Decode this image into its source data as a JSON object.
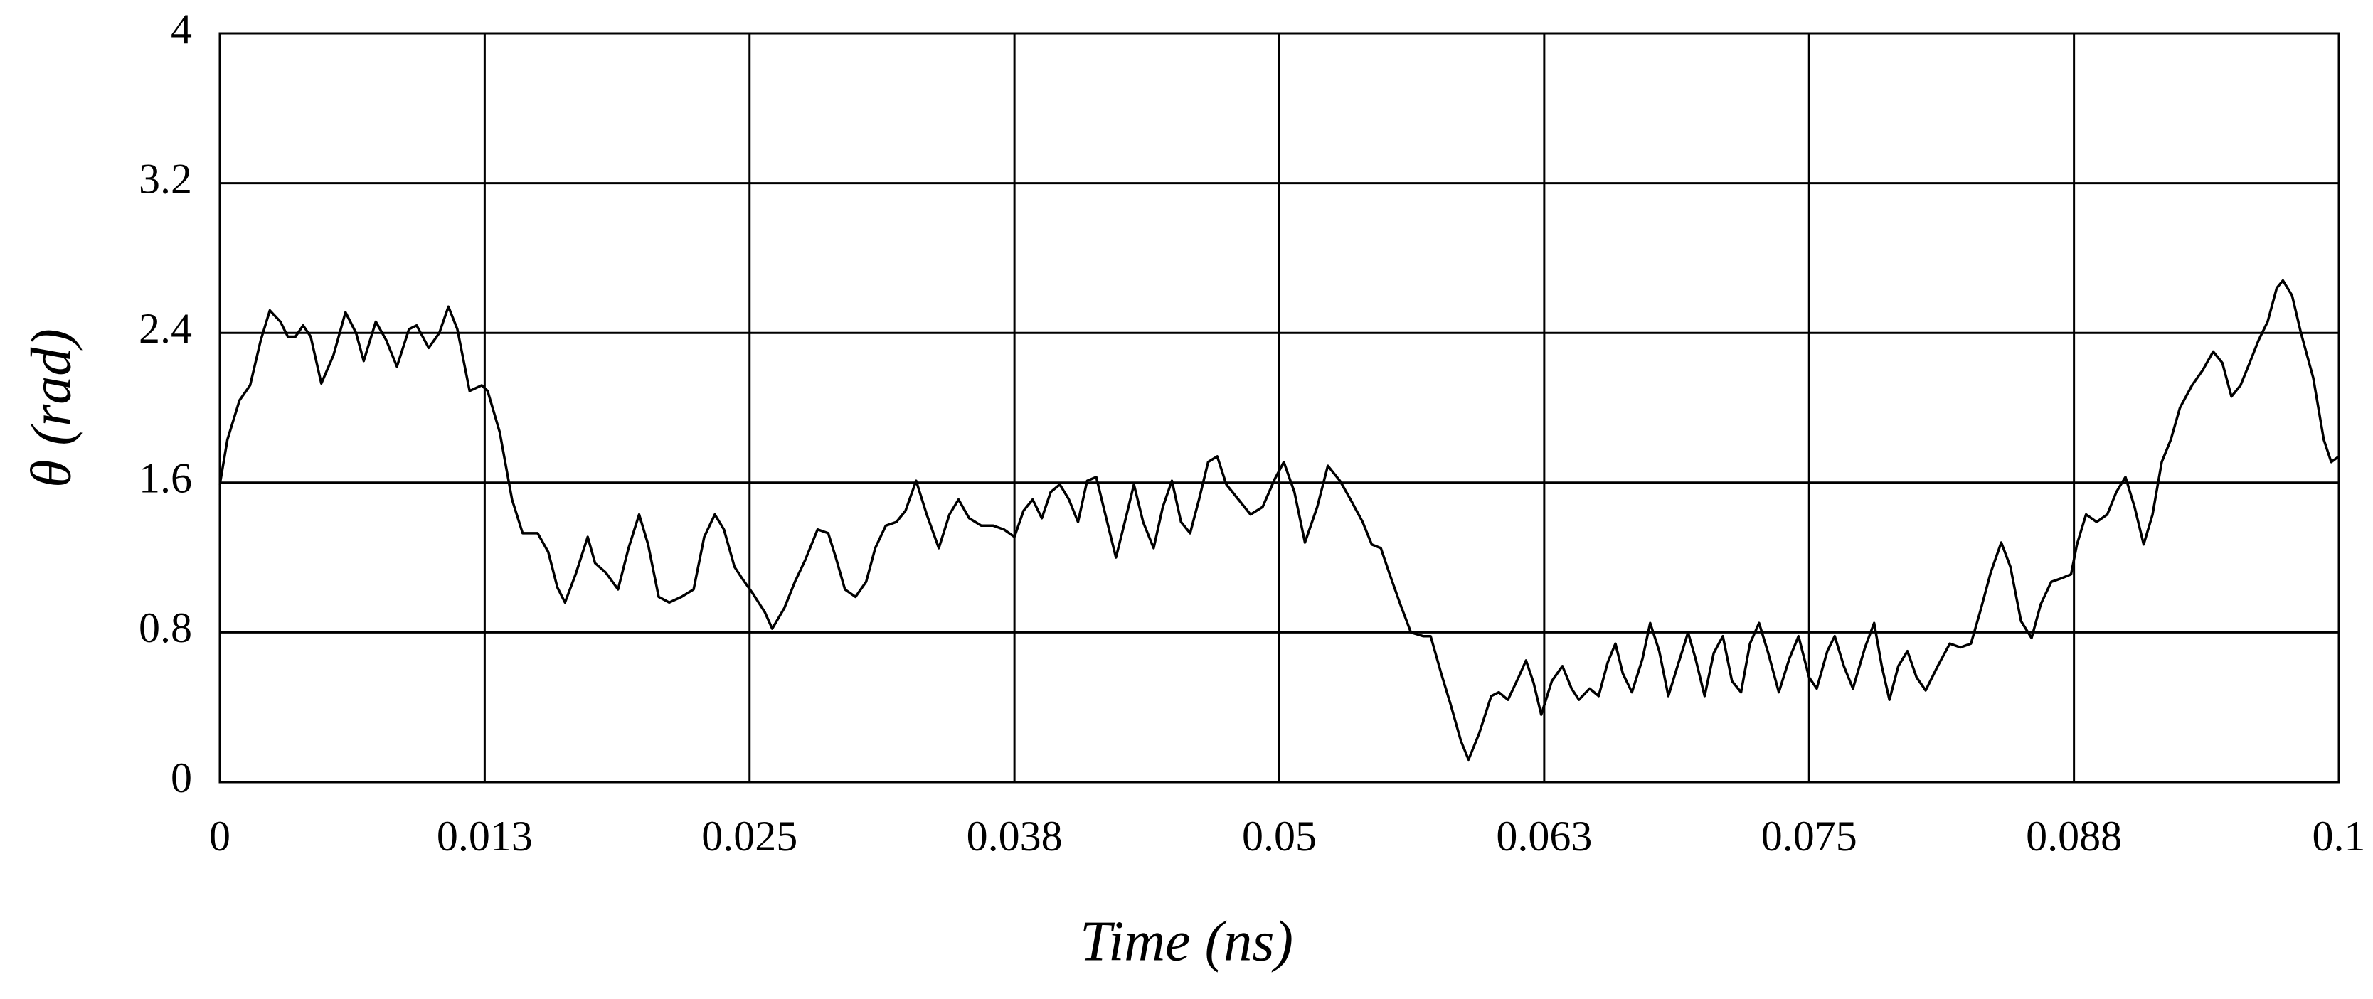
{
  "chart_data": {
    "type": "line",
    "x_label": "Time (ns)",
    "y_label": "θ (rad)",
    "color": "#000000",
    "grid": true,
    "xlim": [
      0,
      0.1
    ],
    "ylim": [
      0,
      4
    ],
    "xticks": [
      0,
      {
        "value": 0.0125,
        "label": "0.013"
      },
      0.025,
      {
        "value": 0.0375,
        "label": "0.038"
      },
      0.05,
      {
        "value": 0.0625,
        "label": "0.063"
      },
      0.075,
      {
        "value": 0.0875,
        "label": "0.088"
      },
      0.1
    ],
    "yticks": [
      0,
      0.8,
      1.6,
      2.4,
      3.2,
      4
    ],
    "x": [
      0,
      0.00036,
      0.00093,
      0.00143,
      0.00193,
      0.00236,
      0.00286,
      0.00321,
      0.00357,
      0.00393,
      0.00429,
      0.00479,
      0.00536,
      0.00593,
      0.00643,
      0.00679,
      0.00736,
      0.00786,
      0.00836,
      0.00893,
      0.00929,
      0.00986,
      0.01036,
      0.01079,
      0.01121,
      0.01179,
      0.01236,
      0.01264,
      0.01321,
      0.01379,
      0.01429,
      0.015,
      0.0155,
      0.01593,
      0.01629,
      0.01679,
      0.01736,
      0.01771,
      0.01821,
      0.01879,
      0.01929,
      0.01979,
      0.02021,
      0.02071,
      0.02121,
      0.02179,
      0.02236,
      0.02286,
      0.02336,
      0.02379,
      0.02429,
      0.02464,
      0.02514,
      0.02571,
      0.02607,
      0.02664,
      0.02714,
      0.02764,
      0.02821,
      0.02871,
      0.02907,
      0.0295,
      0.03,
      0.0305,
      0.03093,
      0.03143,
      0.03193,
      0.03236,
      0.03286,
      0.03336,
      0.03393,
      0.03443,
      0.03486,
      0.03536,
      0.03593,
      0.0365,
      0.037,
      0.0375,
      0.03793,
      0.03836,
      0.03879,
      0.03921,
      0.03964,
      0.04007,
      0.0405,
      0.04093,
      0.04136,
      0.04179,
      0.04229,
      0.04271,
      0.04314,
      0.04357,
      0.04407,
      0.0445,
      0.04493,
      0.04536,
      0.04579,
      0.04621,
      0.04664,
      0.04707,
      0.0475,
      0.04807,
      0.04864,
      0.04921,
      0.04979,
      0.05021,
      0.05071,
      0.05121,
      0.05179,
      0.05229,
      0.05286,
      0.05336,
      0.05393,
      0.05436,
      0.05479,
      0.05521,
      0.05571,
      0.05621,
      0.05679,
      0.05714,
      0.05764,
      0.05807,
      0.05857,
      0.05893,
      0.05943,
      0.06,
      0.06036,
      0.06079,
      0.06129,
      0.06164,
      0.062,
      0.06236,
      0.06286,
      0.06336,
      0.06379,
      0.06414,
      0.06464,
      0.06507,
      0.0655,
      0.06586,
      0.06621,
      0.06664,
      0.06714,
      0.0675,
      0.06793,
      0.06836,
      0.06879,
      0.06929,
      0.06964,
      0.07007,
      0.0705,
      0.07093,
      0.07136,
      0.07179,
      0.07221,
      0.07264,
      0.07307,
      0.07357,
      0.07407,
      0.0745,
      0.075,
      0.07536,
      0.07586,
      0.07621,
      0.07664,
      0.07707,
      0.07764,
      0.07807,
      0.07843,
      0.07879,
      0.07921,
      0.07964,
      0.08007,
      0.0805,
      0.08107,
      0.08164,
      0.08214,
      0.08264,
      0.08307,
      0.08357,
      0.08407,
      0.0845,
      0.085,
      0.0855,
      0.08593,
      0.08643,
      0.08693,
      0.08736,
      0.08764,
      0.08807,
      0.08857,
      0.08907,
      0.0895,
      0.08993,
      0.09036,
      0.09079,
      0.09121,
      0.09164,
      0.09207,
      0.0925,
      0.09307,
      0.09357,
      0.09407,
      0.0945,
      0.09493,
      0.09536,
      0.09579,
      0.09621,
      0.09664,
      0.09707,
      0.09736,
      0.09779,
      0.09821,
      0.09879,
      0.09929,
      0.09964,
      0.1
    ],
    "values": [
      1.59,
      1.83,
      2.04,
      2.12,
      2.36,
      2.52,
      2.46,
      2.38,
      2.38,
      2.44,
      2.38,
      2.13,
      2.28,
      2.51,
      2.4,
      2.25,
      2.46,
      2.36,
      2.22,
      2.42,
      2.44,
      2.32,
      2.4,
      2.54,
      2.42,
      2.09,
      2.12,
      2.09,
      1.87,
      1.51,
      1.33,
      1.33,
      1.23,
      1.04,
      0.96,
      1.11,
      1.31,
      1.17,
      1.12,
      1.03,
      1.25,
      1.43,
      1.27,
      0.99,
      0.96,
      0.99,
      1.03,
      1.31,
      1.43,
      1.35,
      1.15,
      1.09,
      1.01,
      0.91,
      0.82,
      0.93,
      1.07,
      1.19,
      1.35,
      1.33,
      1.2,
      1.03,
      0.99,
      1.07,
      1.25,
      1.37,
      1.39,
      1.45,
      1.61,
      1.43,
      1.25,
      1.43,
      1.51,
      1.41,
      1.37,
      1.37,
      1.35,
      1.31,
      1.45,
      1.51,
      1.41,
      1.55,
      1.59,
      1.51,
      1.39,
      1.61,
      1.63,
      1.43,
      1.2,
      1.39,
      1.59,
      1.39,
      1.25,
      1.47,
      1.61,
      1.39,
      1.33,
      1.51,
      1.71,
      1.74,
      1.59,
      1.51,
      1.43,
      1.47,
      1.62,
      1.71,
      1.55,
      1.28,
      1.47,
      1.69,
      1.61,
      1.51,
      1.39,
      1.27,
      1.25,
      1.11,
      0.95,
      0.8,
      0.78,
      0.78,
      0.58,
      0.42,
      0.22,
      0.12,
      0.26,
      0.46,
      0.48,
      0.44,
      0.56,
      0.65,
      0.53,
      0.36,
      0.54,
      0.62,
      0.5,
      0.44,
      0.5,
      0.46,
      0.64,
      0.74,
      0.58,
      0.48,
      0.66,
      0.85,
      0.7,
      0.46,
      0.62,
      0.8,
      0.66,
      0.46,
      0.69,
      0.78,
      0.54,
      0.48,
      0.74,
      0.85,
      0.69,
      0.48,
      0.66,
      0.78,
      0.56,
      0.5,
      0.7,
      0.78,
      0.62,
      0.5,
      0.72,
      0.85,
      0.62,
      0.44,
      0.62,
      0.7,
      0.56,
      0.49,
      0.62,
      0.74,
      0.72,
      0.74,
      0.91,
      1.12,
      1.28,
      1.15,
      0.86,
      0.77,
      0.95,
      1.07,
      1.09,
      1.11,
      1.27,
      1.43,
      1.39,
      1.43,
      1.55,
      1.63,
      1.47,
      1.27,
      1.43,
      1.71,
      1.83,
      2.0,
      2.12,
      2.2,
      2.3,
      2.24,
      2.06,
      2.12,
      2.24,
      2.36,
      2.46,
      2.64,
      2.68,
      2.6,
      2.4,
      2.16,
      1.83,
      1.71,
      1.74
    ]
  }
}
